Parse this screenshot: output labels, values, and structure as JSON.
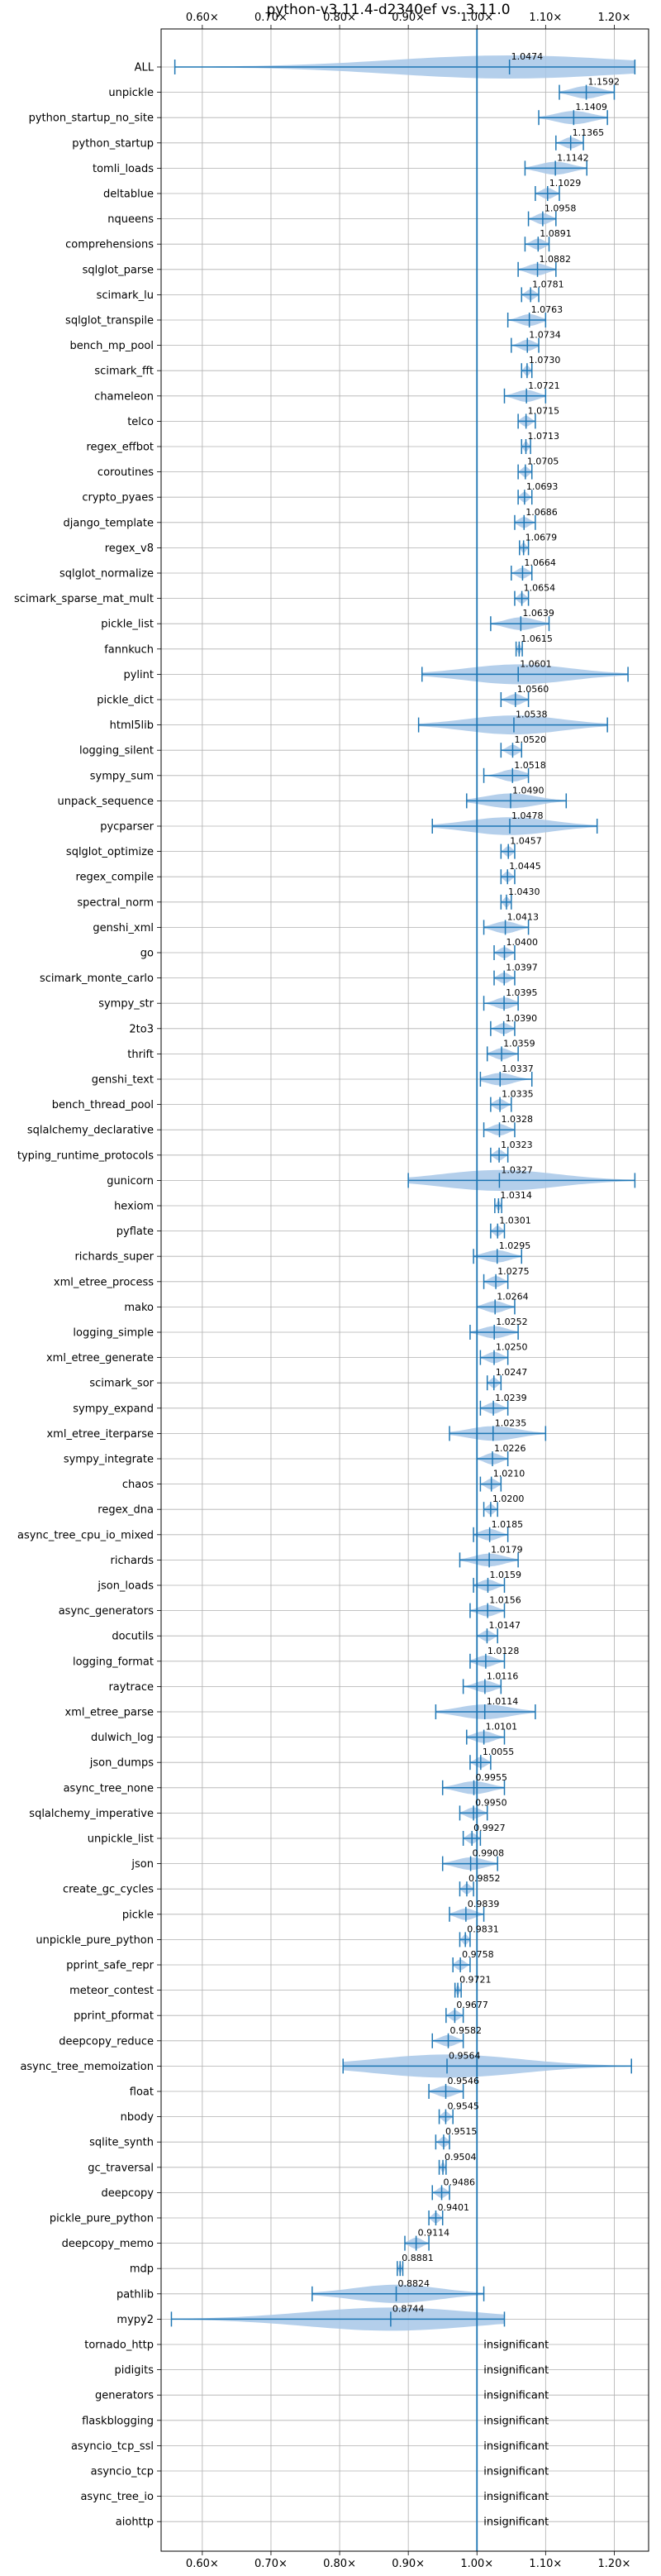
{
  "chart_data": {
    "type": "violin",
    "title": "python-v3.11.4-d2340ef vs. 3.11.0",
    "x_ticks": [
      "0.60×",
      "0.70×",
      "0.80×",
      "0.90×",
      "1.00×",
      "1.10×",
      "1.20×"
    ],
    "x_tick_values": [
      0.6,
      0.7,
      0.8,
      0.9,
      1.0,
      1.1,
      1.2
    ],
    "xlim": [
      0.54,
      1.25
    ],
    "reference_line": 1.0,
    "grid": true,
    "color": "#1f77b4",
    "violin_color": "#a7c7e7",
    "insignificant_label": "insignificant",
    "benchmarks": [
      {
        "name": "ALL",
        "value": 1.0474,
        "label": "1.0474",
        "min": 0.56,
        "max": 1.23
      },
      {
        "name": "unpickle",
        "value": 1.1592,
        "label": "1.1592",
        "min": 1.12,
        "max": 1.2
      },
      {
        "name": "python_startup_no_site",
        "value": 1.1409,
        "label": "1.1409",
        "min": 1.09,
        "max": 1.19
      },
      {
        "name": "python_startup",
        "value": 1.1365,
        "label": "1.1365",
        "min": 1.115,
        "max": 1.155
      },
      {
        "name": "tomli_loads",
        "value": 1.1142,
        "label": "1.1142",
        "min": 1.07,
        "max": 1.16
      },
      {
        "name": "deltablue",
        "value": 1.1029,
        "label": "1.1029",
        "min": 1.085,
        "max": 1.12
      },
      {
        "name": "nqueens",
        "value": 1.0958,
        "label": "1.0958",
        "min": 1.075,
        "max": 1.115
      },
      {
        "name": "comprehensions",
        "value": 1.0891,
        "label": "1.0891",
        "min": 1.07,
        "max": 1.105
      },
      {
        "name": "sqlglot_parse",
        "value": 1.0882,
        "label": "1.0882",
        "min": 1.06,
        "max": 1.115
      },
      {
        "name": "scimark_lu",
        "value": 1.0781,
        "label": "1.0781",
        "min": 1.065,
        "max": 1.09
      },
      {
        "name": "sqlglot_transpile",
        "value": 1.0763,
        "label": "1.0763",
        "min": 1.045,
        "max": 1.1
      },
      {
        "name": "bench_mp_pool",
        "value": 1.0734,
        "label": "1.0734",
        "min": 1.05,
        "max": 1.09
      },
      {
        "name": "scimark_fft",
        "value": 1.073,
        "label": "1.0730",
        "min": 1.065,
        "max": 1.08
      },
      {
        "name": "chameleon",
        "value": 1.0721,
        "label": "1.0721",
        "min": 1.04,
        "max": 1.1
      },
      {
        "name": "telco",
        "value": 1.0715,
        "label": "1.0715",
        "min": 1.06,
        "max": 1.085
      },
      {
        "name": "regex_effbot",
        "value": 1.0713,
        "label": "1.0713",
        "min": 1.065,
        "max": 1.078
      },
      {
        "name": "coroutines",
        "value": 1.0705,
        "label": "1.0705",
        "min": 1.06,
        "max": 1.08
      },
      {
        "name": "crypto_pyaes",
        "value": 1.0693,
        "label": "1.0693",
        "min": 1.06,
        "max": 1.08
      },
      {
        "name": "django_template",
        "value": 1.0686,
        "label": "1.0686",
        "min": 1.055,
        "max": 1.085
      },
      {
        "name": "regex_v8",
        "value": 1.0679,
        "label": "1.0679",
        "min": 1.062,
        "max": 1.075
      },
      {
        "name": "sqlglot_normalize",
        "value": 1.0664,
        "label": "1.0664",
        "min": 1.05,
        "max": 1.08
      },
      {
        "name": "scimark_sparse_mat_mult",
        "value": 1.0654,
        "label": "1.0654",
        "min": 1.055,
        "max": 1.075
      },
      {
        "name": "pickle_list",
        "value": 1.0639,
        "label": "1.0639",
        "min": 1.02,
        "max": 1.105
      },
      {
        "name": "fannkuch",
        "value": 1.0615,
        "label": "1.0615",
        "min": 1.057,
        "max": 1.066
      },
      {
        "name": "pylint",
        "value": 1.0601,
        "label": "1.0601",
        "min": 0.92,
        "max": 1.22
      },
      {
        "name": "pickle_dict",
        "value": 1.056,
        "label": "1.0560",
        "min": 1.035,
        "max": 1.075
      },
      {
        "name": "html5lib",
        "value": 1.0538,
        "label": "1.0538",
        "min": 0.915,
        "max": 1.19
      },
      {
        "name": "logging_silent",
        "value": 1.052,
        "label": "1.0520",
        "min": 1.035,
        "max": 1.065
      },
      {
        "name": "sympy_sum",
        "value": 1.0518,
        "label": "1.0518",
        "min": 1.01,
        "max": 1.075
      },
      {
        "name": "unpack_sequence",
        "value": 1.049,
        "label": "1.0490",
        "min": 0.985,
        "max": 1.13
      },
      {
        "name": "pycparser",
        "value": 1.0478,
        "label": "1.0478",
        "min": 0.935,
        "max": 1.175
      },
      {
        "name": "sqlglot_optimize",
        "value": 1.0457,
        "label": "1.0457",
        "min": 1.035,
        "max": 1.055
      },
      {
        "name": "regex_compile",
        "value": 1.0445,
        "label": "1.0445",
        "min": 1.035,
        "max": 1.055
      },
      {
        "name": "spectral_norm",
        "value": 1.043,
        "label": "1.0430",
        "min": 1.035,
        "max": 1.05
      },
      {
        "name": "genshi_xml",
        "value": 1.0413,
        "label": "1.0413",
        "min": 1.01,
        "max": 1.075
      },
      {
        "name": "go",
        "value": 1.04,
        "label": "1.0400",
        "min": 1.025,
        "max": 1.055
      },
      {
        "name": "scimark_monte_carlo",
        "value": 1.0397,
        "label": "1.0397",
        "min": 1.025,
        "max": 1.055
      },
      {
        "name": "sympy_str",
        "value": 1.0395,
        "label": "1.0395",
        "min": 1.01,
        "max": 1.06
      },
      {
        "name": "2to3",
        "value": 1.039,
        "label": "1.0390",
        "min": 1.02,
        "max": 1.055
      },
      {
        "name": "thrift",
        "value": 1.0359,
        "label": "1.0359",
        "min": 1.015,
        "max": 1.06
      },
      {
        "name": "genshi_text",
        "value": 1.0337,
        "label": "1.0337",
        "min": 1.005,
        "max": 1.08
      },
      {
        "name": "bench_thread_pool",
        "value": 1.0335,
        "label": "1.0335",
        "min": 1.02,
        "max": 1.05
      },
      {
        "name": "sqlalchemy_declarative",
        "value": 1.0328,
        "label": "1.0328",
        "min": 1.01,
        "max": 1.055
      },
      {
        "name": "typing_runtime_protocols",
        "value": 1.0323,
        "label": "1.0323",
        "min": 1.02,
        "max": 1.045
      },
      {
        "name": "gunicorn",
        "value": 1.0327,
        "label": "1.0327",
        "min": 0.9,
        "max": 1.23
      },
      {
        "name": "hexiom",
        "value": 1.0314,
        "label": "1.0314",
        "min": 1.026,
        "max": 1.036
      },
      {
        "name": "pyflate",
        "value": 1.0301,
        "label": "1.0301",
        "min": 1.02,
        "max": 1.04
      },
      {
        "name": "richards_super",
        "value": 1.0295,
        "label": "1.0295",
        "min": 0.995,
        "max": 1.065
      },
      {
        "name": "xml_etree_process",
        "value": 1.0275,
        "label": "1.0275",
        "min": 1.01,
        "max": 1.045
      },
      {
        "name": "mako",
        "value": 1.0264,
        "label": "1.0264",
        "min": 1.0,
        "max": 1.055
      },
      {
        "name": "logging_simple",
        "value": 1.0252,
        "label": "1.0252",
        "min": 0.99,
        "max": 1.06
      },
      {
        "name": "xml_etree_generate",
        "value": 1.025,
        "label": "1.0250",
        "min": 1.005,
        "max": 1.045
      },
      {
        "name": "scimark_sor",
        "value": 1.0247,
        "label": "1.0247",
        "min": 1.015,
        "max": 1.035
      },
      {
        "name": "sympy_expand",
        "value": 1.0239,
        "label": "1.0239",
        "min": 1.005,
        "max": 1.045
      },
      {
        "name": "xml_etree_iterparse",
        "value": 1.0235,
        "label": "1.0235",
        "min": 0.96,
        "max": 1.1
      },
      {
        "name": "sympy_integrate",
        "value": 1.0226,
        "label": "1.0226",
        "min": 1.0,
        "max": 1.045
      },
      {
        "name": "chaos",
        "value": 1.021,
        "label": "1.0210",
        "min": 1.005,
        "max": 1.035
      },
      {
        "name": "regex_dna",
        "value": 1.02,
        "label": "1.0200",
        "min": 1.01,
        "max": 1.03
      },
      {
        "name": "async_tree_cpu_io_mixed",
        "value": 1.0185,
        "label": "1.0185",
        "min": 0.995,
        "max": 1.045
      },
      {
        "name": "richards",
        "value": 1.0179,
        "label": "1.0179",
        "min": 0.975,
        "max": 1.06
      },
      {
        "name": "json_loads",
        "value": 1.0159,
        "label": "1.0159",
        "min": 0.995,
        "max": 1.04
      },
      {
        "name": "async_generators",
        "value": 1.0156,
        "label": "1.0156",
        "min": 0.99,
        "max": 1.04
      },
      {
        "name": "docutils",
        "value": 1.0147,
        "label": "1.0147",
        "min": 1.0,
        "max": 1.03
      },
      {
        "name": "logging_format",
        "value": 1.0128,
        "label": "1.0128",
        "min": 0.99,
        "max": 1.04
      },
      {
        "name": "raytrace",
        "value": 1.0116,
        "label": "1.0116",
        "min": 0.98,
        "max": 1.035
      },
      {
        "name": "xml_etree_parse",
        "value": 1.0114,
        "label": "1.0114",
        "min": 0.94,
        "max": 1.085
      },
      {
        "name": "dulwich_log",
        "value": 1.0101,
        "label": "1.0101",
        "min": 0.985,
        "max": 1.04
      },
      {
        "name": "json_dumps",
        "value": 1.0055,
        "label": "1.0055",
        "min": 0.99,
        "max": 1.02
      },
      {
        "name": "async_tree_none",
        "value": 0.9955,
        "label": "0.9955",
        "min": 0.95,
        "max": 1.04
      },
      {
        "name": "sqlalchemy_imperative",
        "value": 0.995,
        "label": "0.9950",
        "min": 0.975,
        "max": 1.015
      },
      {
        "name": "unpickle_list",
        "value": 0.9927,
        "label": "0.9927",
        "min": 0.98,
        "max": 1.005
      },
      {
        "name": "json",
        "value": 0.9908,
        "label": "0.9908",
        "min": 0.95,
        "max": 1.03
      },
      {
        "name": "create_gc_cycles",
        "value": 0.9852,
        "label": "0.9852",
        "min": 0.975,
        "max": 0.995
      },
      {
        "name": "pickle",
        "value": 0.9839,
        "label": "0.9839",
        "min": 0.96,
        "max": 1.01
      },
      {
        "name": "unpickle_pure_python",
        "value": 0.9831,
        "label": "0.9831",
        "min": 0.975,
        "max": 0.99
      },
      {
        "name": "pprint_safe_repr",
        "value": 0.9758,
        "label": "0.9758",
        "min": 0.965,
        "max": 0.99
      },
      {
        "name": "meteor_contest",
        "value": 0.9721,
        "label": "0.9721",
        "min": 0.968,
        "max": 0.977
      },
      {
        "name": "pprint_pformat",
        "value": 0.9677,
        "label": "0.9677",
        "min": 0.955,
        "max": 0.98
      },
      {
        "name": "deepcopy_reduce",
        "value": 0.9582,
        "label": "0.9582",
        "min": 0.935,
        "max": 0.98
      },
      {
        "name": "async_tree_memoization",
        "value": 0.9564,
        "label": "0.9564",
        "min": 0.805,
        "max": 1.225
      },
      {
        "name": "float",
        "value": 0.9546,
        "label": "0.9546",
        "min": 0.93,
        "max": 0.98
      },
      {
        "name": "nbody",
        "value": 0.9545,
        "label": "0.9545",
        "min": 0.945,
        "max": 0.965
      },
      {
        "name": "sqlite_synth",
        "value": 0.9515,
        "label": "0.9515",
        "min": 0.94,
        "max": 0.96
      },
      {
        "name": "gc_traversal",
        "value": 0.9504,
        "label": "0.9504",
        "min": 0.945,
        "max": 0.955
      },
      {
        "name": "deepcopy",
        "value": 0.9486,
        "label": "0.9486",
        "min": 0.935,
        "max": 0.96
      },
      {
        "name": "pickle_pure_python",
        "value": 0.9401,
        "label": "0.9401",
        "min": 0.93,
        "max": 0.95
      },
      {
        "name": "deepcopy_memo",
        "value": 0.9114,
        "label": "0.9114",
        "min": 0.895,
        "max": 0.93
      },
      {
        "name": "mdp",
        "value": 0.8881,
        "label": "0.8881",
        "min": 0.884,
        "max": 0.892
      },
      {
        "name": "pathlib",
        "value": 0.8824,
        "label": "0.8824",
        "min": 0.76,
        "max": 1.01
      },
      {
        "name": "mypy2",
        "value": 0.8744,
        "label": "0.8744",
        "min": 0.555,
        "max": 1.04
      },
      {
        "name": "tornado_http",
        "value": null,
        "label": "insignificant"
      },
      {
        "name": "pidigits",
        "value": null,
        "label": "insignificant"
      },
      {
        "name": "generators",
        "value": null,
        "label": "insignificant"
      },
      {
        "name": "flaskblogging",
        "value": null,
        "label": "insignificant"
      },
      {
        "name": "asyncio_tcp_ssl",
        "value": null,
        "label": "insignificant"
      },
      {
        "name": "asyncio_tcp",
        "value": null,
        "label": "insignificant"
      },
      {
        "name": "async_tree_io",
        "value": null,
        "label": "insignificant"
      },
      {
        "name": "aiohttp",
        "value": null,
        "label": "insignificant"
      }
    ]
  }
}
